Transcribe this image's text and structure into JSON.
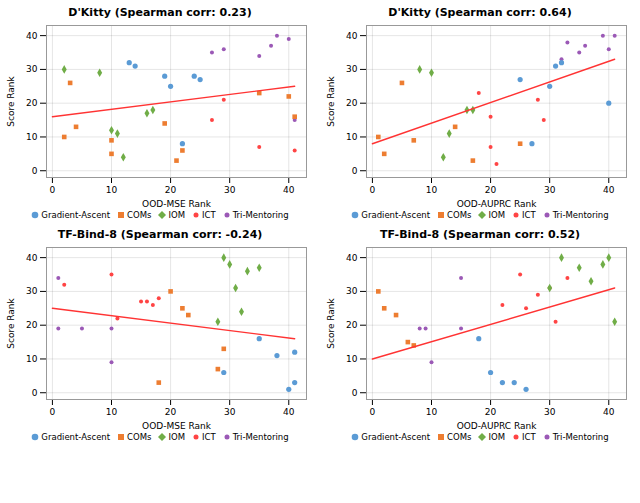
{
  "chart_data": [
    {
      "type": "scatter",
      "title": "D'Kitty (Spearman corr: 0.23)",
      "xlabel": "OOD-MSE Rank",
      "ylabel": "Score Rank",
      "xlim": [
        -1,
        43
      ],
      "ylim": [
        -2,
        43
      ],
      "xticks": [
        0,
        10,
        20,
        30,
        40
      ],
      "yticks": [
        0,
        10,
        20,
        30,
        40
      ],
      "grid": true,
      "legend": "bottom",
      "series": [
        {
          "name": "Gradient-Ascent",
          "color": "#5B9BD5",
          "marker": "circle",
          "x": [
            13,
            14,
            19,
            20,
            22,
            24,
            25
          ],
          "values": [
            32,
            31,
            28,
            25,
            8,
            28,
            27
          ]
        },
        {
          "name": "COMs",
          "color": "#ED7D31",
          "marker": "square",
          "x": [
            2,
            3,
            4,
            10,
            10,
            19,
            21,
            22,
            35,
            40,
            41
          ],
          "values": [
            10,
            26,
            13,
            5,
            9,
            14,
            3,
            6,
            23,
            22,
            16
          ]
        },
        {
          "name": "IOM",
          "color": "#70AD47",
          "marker": "diamond",
          "x": [
            2,
            8,
            10,
            11,
            12,
            16,
            17
          ],
          "values": [
            30,
            29,
            12,
            11,
            4,
            17,
            18
          ]
        },
        {
          "name": "ICT",
          "color": "#FF4444",
          "marker": "point",
          "x": [
            27,
            29,
            35,
            41
          ],
          "values": [
            15,
            21,
            7,
            6
          ]
        },
        {
          "name": "Tri-Mentoring",
          "color": "#9B59B6",
          "marker": "point",
          "x": [
            27,
            29,
            35,
            37,
            38,
            40,
            41
          ],
          "values": [
            35,
            36,
            34,
            37,
            40,
            39,
            15
          ]
        },
        {
          "type": "line",
          "color": "#FF3333",
          "x": [
            0,
            41
          ],
          "values": [
            16,
            25
          ]
        }
      ]
    },
    {
      "type": "scatter",
      "title": "D'Kitty (Spearman corr: 0.64)",
      "xlabel": "OOD-AUPRC Rank",
      "ylabel": "Score Rank",
      "xlim": [
        -1,
        43
      ],
      "ylim": [
        -2,
        43
      ],
      "xticks": [
        0,
        10,
        20,
        30,
        40
      ],
      "yticks": [
        0,
        10,
        20,
        30,
        40
      ],
      "grid": true,
      "legend": "bottom",
      "series": [
        {
          "name": "Gradient-Ascent",
          "color": "#5B9BD5",
          "marker": "circle",
          "x": [
            25,
            27,
            30,
            31,
            32,
            40
          ],
          "values": [
            27,
            8,
            25,
            31,
            32,
            20
          ]
        },
        {
          "name": "COMs",
          "color": "#ED7D31",
          "marker": "square",
          "x": [
            1,
            2,
            5,
            7,
            14,
            17,
            25
          ],
          "values": [
            10,
            5,
            26,
            9,
            13,
            3,
            8
          ]
        },
        {
          "name": "IOM",
          "color": "#70AD47",
          "marker": "diamond",
          "x": [
            8,
            10,
            12,
            13,
            16,
            17
          ],
          "values": [
            30,
            29,
            4,
            11,
            18,
            18
          ]
        },
        {
          "name": "ICT",
          "color": "#FF4444",
          "marker": "point",
          "x": [
            18,
            20,
            20,
            21,
            28,
            29
          ],
          "values": [
            23,
            16,
            7,
            2,
            21,
            15
          ]
        },
        {
          "name": "Tri-Mentoring",
          "color": "#9B59B6",
          "marker": "point",
          "x": [
            32,
            33,
            35,
            36,
            39,
            40,
            41
          ],
          "values": [
            33,
            38,
            35,
            37,
            40,
            36,
            40
          ]
        },
        {
          "type": "line",
          "color": "#FF3333",
          "x": [
            0,
            41
          ],
          "values": [
            8,
            33
          ]
        }
      ]
    },
    {
      "type": "scatter",
      "title": "TF-Bind-8 (Spearman corr: -0.24)",
      "xlabel": "OOD-MSE Rank",
      "ylabel": "Score Rank",
      "xlim": [
        -1,
        43
      ],
      "ylim": [
        -2,
        43
      ],
      "xticks": [
        0,
        10,
        20,
        30,
        40
      ],
      "yticks": [
        0,
        10,
        20,
        30,
        40
      ],
      "grid": true,
      "legend": "bottom",
      "series": [
        {
          "name": "Gradient-Ascent",
          "color": "#5B9BD5",
          "marker": "circle",
          "x": [
            29,
            35,
            38,
            40,
            41,
            41
          ],
          "values": [
            6,
            16,
            11,
            1,
            12,
            3
          ]
        },
        {
          "name": "COMs",
          "color": "#ED7D31",
          "marker": "square",
          "x": [
            18,
            20,
            22,
            23,
            28,
            29
          ],
          "values": [
            3,
            30,
            25,
            23,
            7,
            13
          ]
        },
        {
          "name": "IOM",
          "color": "#70AD47",
          "marker": "diamond",
          "x": [
            28,
            29,
            30,
            31,
            32,
            33,
            35
          ],
          "values": [
            21,
            40,
            38,
            31,
            24,
            36,
            37
          ]
        },
        {
          "name": "ICT",
          "color": "#FF4444",
          "marker": "point",
          "x": [
            2,
            10,
            11,
            15,
            16,
            17,
            18
          ],
          "values": [
            32,
            35,
            22,
            27,
            27,
            26,
            28
          ]
        },
        {
          "name": "Tri-Mentoring",
          "color": "#9B59B6",
          "marker": "point",
          "x": [
            1,
            1,
            5,
            10,
            10
          ],
          "values": [
            34,
            19,
            19,
            9,
            19
          ]
        },
        {
          "type": "line",
          "color": "#FF3333",
          "x": [
            0,
            41
          ],
          "values": [
            25,
            16
          ]
        }
      ]
    },
    {
      "type": "scatter",
      "title": "TF-Bind-8 (Spearman corr: 0.52)",
      "xlabel": "OOD-AUPRC Rank",
      "ylabel": "Score Rank",
      "xlim": [
        -1,
        43
      ],
      "ylim": [
        -2,
        43
      ],
      "xticks": [
        0,
        10,
        20,
        30,
        40
      ],
      "yticks": [
        0,
        10,
        20,
        30,
        40
      ],
      "grid": true,
      "legend": "bottom",
      "series": [
        {
          "name": "Gradient-Ascent",
          "color": "#5B9BD5",
          "marker": "circle",
          "x": [
            18,
            20,
            22,
            24,
            26
          ],
          "values": [
            16,
            6,
            3,
            3,
            1
          ]
        },
        {
          "name": "COMs",
          "color": "#ED7D31",
          "marker": "square",
          "x": [
            1,
            2,
            4,
            6,
            7
          ],
          "values": [
            30,
            25,
            23,
            15,
            14
          ]
        },
        {
          "name": "IOM",
          "color": "#70AD47",
          "marker": "diamond",
          "x": [
            30,
            32,
            35,
            37,
            39,
            40,
            41
          ],
          "values": [
            31,
            40,
            37,
            33,
            38,
            40,
            21
          ]
        },
        {
          "name": "ICT",
          "color": "#FF4444",
          "marker": "point",
          "x": [
            22,
            25,
            26,
            28,
            30,
            31,
            33
          ],
          "values": [
            26,
            35,
            25,
            29,
            31,
            21,
            34
          ]
        },
        {
          "name": "Tri-Mentoring",
          "color": "#9B59B6",
          "marker": "point",
          "x": [
            8,
            9,
            10,
            15,
            15
          ],
          "values": [
            19,
            19,
            9,
            19,
            34
          ]
        },
        {
          "type": "line",
          "color": "#FF3333",
          "x": [
            0,
            41
          ],
          "values": [
            10,
            31
          ]
        }
      ]
    }
  ]
}
